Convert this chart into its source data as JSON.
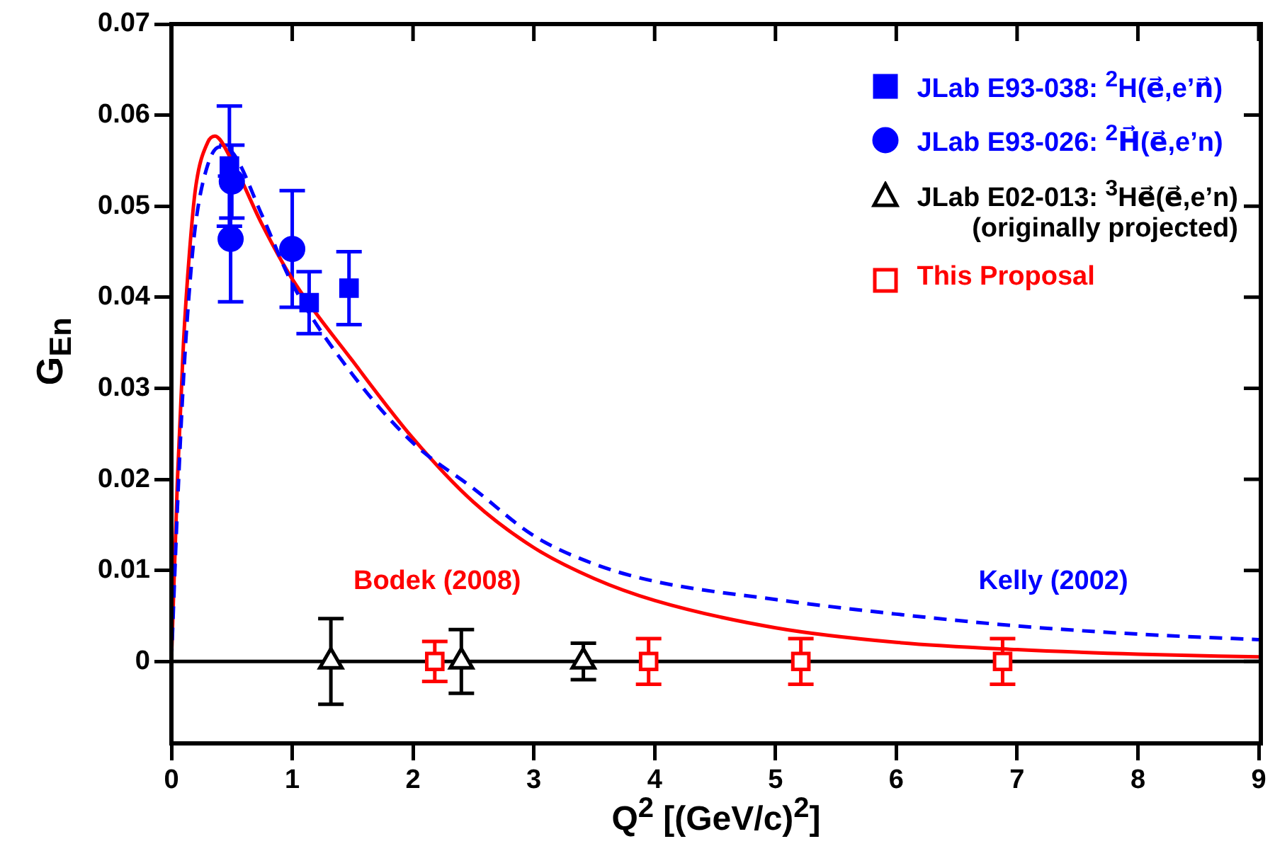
{
  "chart_data": {
    "type": "scatter",
    "xlabel": "Q$^{2}$ [(GeV/c)$^{2}$]",
    "ylabel": "G$_{En}$",
    "xlim": [
      0,
      9
    ],
    "xticks": [
      0,
      1,
      2,
      3,
      4,
      5,
      6,
      7,
      8,
      9
    ],
    "ylim": [
      -0.009,
      0.07
    ],
    "yticks": [
      0,
      0.01,
      0.02,
      0.03,
      0.04,
      0.05,
      0.06,
      0.07
    ],
    "grid": false,
    "legend": "top right",
    "ref_lines": [
      {
        "axis": "y",
        "value": 0,
        "color": "#000000"
      }
    ],
    "series": [
      {
        "name": "JLab E93-038: $^{2}$H(e⃗,e’n⃗)",
        "marker": "square",
        "color": "#0000ff",
        "x": [
          0.48,
          1.14,
          1.47
        ],
        "values": [
          0.0544,
          0.0394,
          0.041
        ],
        "errors": [
          0.0066,
          0.0034,
          0.004
        ]
      },
      {
        "name": "JLab E93-026: $^{2}$H⃗(e⃗,e’n)",
        "marker": "circle",
        "color": "#0000ff",
        "x": [
          0.5,
          0.49,
          1.0
        ],
        "values": [
          0.0527,
          0.0464,
          0.0453
        ],
        "errors": [
          0.004,
          0.0069,
          0.0064
        ]
      },
      {
        "name": "JLab E02-013: $^{3}$He⃗(e⃗,e’n)\n(originally projected)",
        "marker": "triangle",
        "color": "#000000",
        "x": [
          1.32,
          2.4,
          3.41
        ],
        "values": [
          0,
          0,
          0
        ],
        "errors": [
          0.0047,
          0.0035,
          0.002
        ]
      },
      {
        "name": "This Proposal",
        "marker": "square",
        "color": "#ff0000",
        "x": [
          2.18,
          3.95,
          5.21,
          6.88
        ],
        "values": [
          0,
          0,
          0,
          0
        ],
        "errors": [
          0.0022,
          0.0025,
          0.0025,
          0.0025
        ]
      },
      {
        "name": "Kelly (2002)",
        "type": "line",
        "line_style": "dashed",
        "color": "#0000ff",
        "x": [
          0,
          0.05,
          0.1,
          0.15,
          0.2,
          0.3,
          0.4,
          0.5,
          0.75,
          1,
          1.5,
          2,
          2.5,
          3,
          3.5,
          4,
          5,
          6,
          7,
          8,
          9
        ],
        "values": [
          0,
          0.017,
          0.031,
          0.041,
          0.048,
          0.0545,
          0.0565,
          0.056,
          0.049,
          0.0415,
          0.0315,
          0.024,
          0.019,
          0.0138,
          0.0107,
          0.0088,
          0.0068,
          0.0052,
          0.0039,
          0.003,
          0.0024
        ]
      },
      {
        "name": "Bodek (2008)",
        "type": "line",
        "line_style": "solid",
        "color": "#ff0000",
        "x": [
          0,
          0.05,
          0.1,
          0.15,
          0.2,
          0.3,
          0.36,
          0.5,
          0.75,
          1,
          1.5,
          2,
          2.5,
          3,
          3.5,
          4,
          5,
          6,
          7,
          8,
          9
        ],
        "values": [
          0,
          0.02,
          0.035,
          0.045,
          0.052,
          0.057,
          0.0577,
          0.055,
          0.048,
          0.042,
          0.033,
          0.0245,
          0.0175,
          0.0125,
          0.0091,
          0.0067,
          0.0037,
          0.0021,
          0.0013,
          0.0008,
          0.0005
        ]
      }
    ]
  }
}
